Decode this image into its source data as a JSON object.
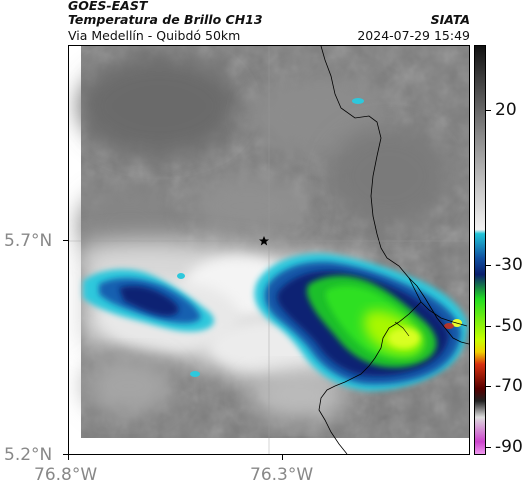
{
  "header": {
    "source": "GOES-EAST",
    "product": "Temperatura de Brillo CH13",
    "region": "Via Medellín - Quibdó 50km",
    "agency": "SIATA",
    "datetime": "2024-07-29 15:49"
  },
  "axes": {
    "lat_ticks": [
      {
        "label": "5.7°N",
        "value": 5.7
      },
      {
        "label": "5.2°N",
        "value": 5.2
      }
    ],
    "lon_ticks": [
      {
        "label": "76.8°W",
        "value": -76.8
      },
      {
        "label": "76.3°W",
        "value": -76.3
      }
    ]
  },
  "colorbar": {
    "ticks": [
      {
        "label": "20",
        "value": 20
      },
      {
        "label": "-30",
        "value": -30
      },
      {
        "label": "-50",
        "value": -50
      },
      {
        "label": "-70",
        "value": -70
      },
      {
        "label": "-90",
        "value": -90
      }
    ],
    "colors": {
      "warm_dark": "#111111",
      "warm_mid": "#8a8a8a",
      "cold_light": "#f2f2f2",
      "cyan": "#22c5d8",
      "blue": "#1050a0",
      "navy": "#0a1f6e",
      "green": "#22dd22",
      "yellow_green": "#c8ff00",
      "red": "#d83010",
      "magenta": "#cc44cc"
    }
  },
  "map": {
    "marker": "star-icon",
    "colors": {
      "background_gray": "#7a7a7a",
      "border_line": "#000000",
      "grid_line": "#9a9a9a"
    }
  }
}
